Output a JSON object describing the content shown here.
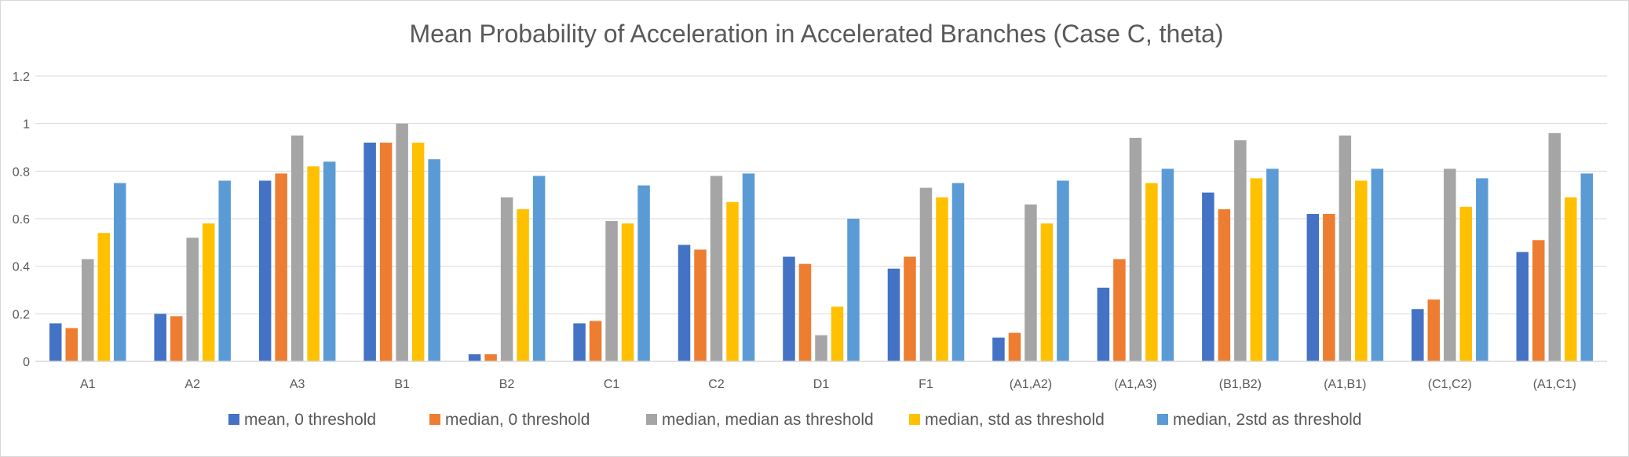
{
  "chart_data": {
    "type": "bar",
    "title": "Mean Probability of Acceleration in Accelerated Branches (Case C, theta)",
    "xlabel": "",
    "ylabel": "",
    "ylim": [
      0,
      1.2
    ],
    "yticks": [
      "0",
      "0.2",
      "0.4",
      "0.6",
      "0.8",
      "1",
      "1.2"
    ],
    "grid": true,
    "legend_position": "bottom",
    "categories": [
      "A1",
      "A2",
      "A3",
      "B1",
      "B2",
      "C1",
      "C2",
      "D1",
      "F1",
      "(A1,A2)",
      "(A1,A3)",
      "(B1,B2)",
      "(A1,B1)",
      "(C1,C2)",
      "(A1,C1)"
    ],
    "series": [
      {
        "name": "mean, 0 threshold",
        "color": "#4472c4",
        "values": [
          0.16,
          0.2,
          0.76,
          0.92,
          0.03,
          0.16,
          0.49,
          0.44,
          0.39,
          0.1,
          0.31,
          0.71,
          0.62,
          0.22,
          0.46
        ]
      },
      {
        "name": "median, 0 threshold",
        "color": "#ed7d31",
        "values": [
          0.14,
          0.19,
          0.79,
          0.92,
          0.03,
          0.17,
          0.47,
          0.41,
          0.44,
          0.12,
          0.43,
          0.64,
          0.62,
          0.26,
          0.51
        ]
      },
      {
        "name": "median, median as threshold",
        "color": "#a5a5a5",
        "values": [
          0.43,
          0.52,
          0.95,
          1.0,
          0.69,
          0.59,
          0.78,
          0.11,
          0.73,
          0.66,
          0.94,
          0.93,
          0.95,
          0.81,
          0.96
        ]
      },
      {
        "name": "median, std as threshold",
        "color": "#ffc000",
        "values": [
          0.54,
          0.58,
          0.82,
          0.92,
          0.64,
          0.58,
          0.67,
          0.23,
          0.69,
          0.58,
          0.75,
          0.77,
          0.76,
          0.65,
          0.69
        ]
      },
      {
        "name": "median, 2std as threshold",
        "color": "#5b9bd5",
        "values": [
          0.75,
          0.76,
          0.84,
          0.85,
          0.78,
          0.74,
          0.79,
          0.6,
          0.75,
          0.76,
          0.81,
          0.81,
          0.81,
          0.77,
          0.79
        ]
      }
    ],
    "colors": {
      "gridline": "#d9d9d9",
      "axis": "#d9d9d9",
      "text": "#595959"
    }
  }
}
